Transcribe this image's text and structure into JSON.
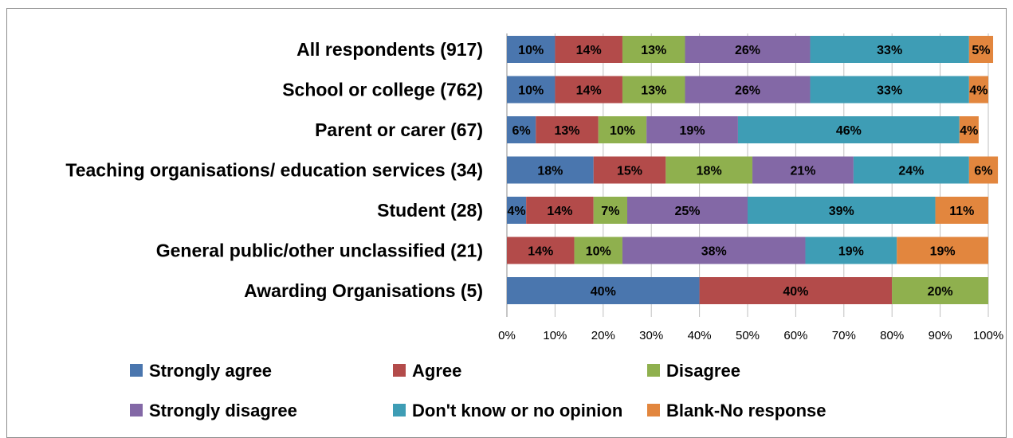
{
  "chart_data": {
    "type": "bar",
    "orientation": "horizontal",
    "stacked": "percent",
    "categories": [
      "All respondents (917)",
      "School or college (762)",
      "Parent or carer (67)",
      "Teaching organisations/ education services (34)",
      "Student (28)",
      "General public/other unclassified (21)",
      "Awarding Organisations (5)"
    ],
    "series": [
      {
        "name": "Strongly agree",
        "color": "#4a76ae",
        "values": [
          10,
          10,
          6,
          18,
          4,
          0,
          40
        ]
      },
      {
        "name": "Agree",
        "color": "#b34b4a",
        "values": [
          14,
          14,
          13,
          15,
          14,
          14,
          40
        ]
      },
      {
        "name": "Disagree",
        "color": "#8fb04e",
        "values": [
          13,
          13,
          10,
          18,
          7,
          10,
          20
        ]
      },
      {
        "name": "Strongly disagree",
        "color": "#8368a6",
        "values": [
          26,
          26,
          19,
          21,
          25,
          38,
          0
        ]
      },
      {
        "name": "Don't know or no opinion",
        "color": "#3e9db5",
        "values": [
          33,
          33,
          46,
          24,
          39,
          19,
          0
        ]
      },
      {
        "name": "Blank-No response",
        "color": "#e2863e",
        "values": [
          5,
          4,
          4,
          6,
          11,
          19,
          0
        ]
      }
    ],
    "xlim": [
      0,
      100
    ],
    "xticks": [
      "0%",
      "10%",
      "20%",
      "30%",
      "40%",
      "50%",
      "60%",
      "70%",
      "80%",
      "90%",
      "100%"
    ],
    "value_suffix": "%",
    "grid": true,
    "legend_position": "bottom",
    "title": "",
    "xlabel": "",
    "ylabel": ""
  }
}
